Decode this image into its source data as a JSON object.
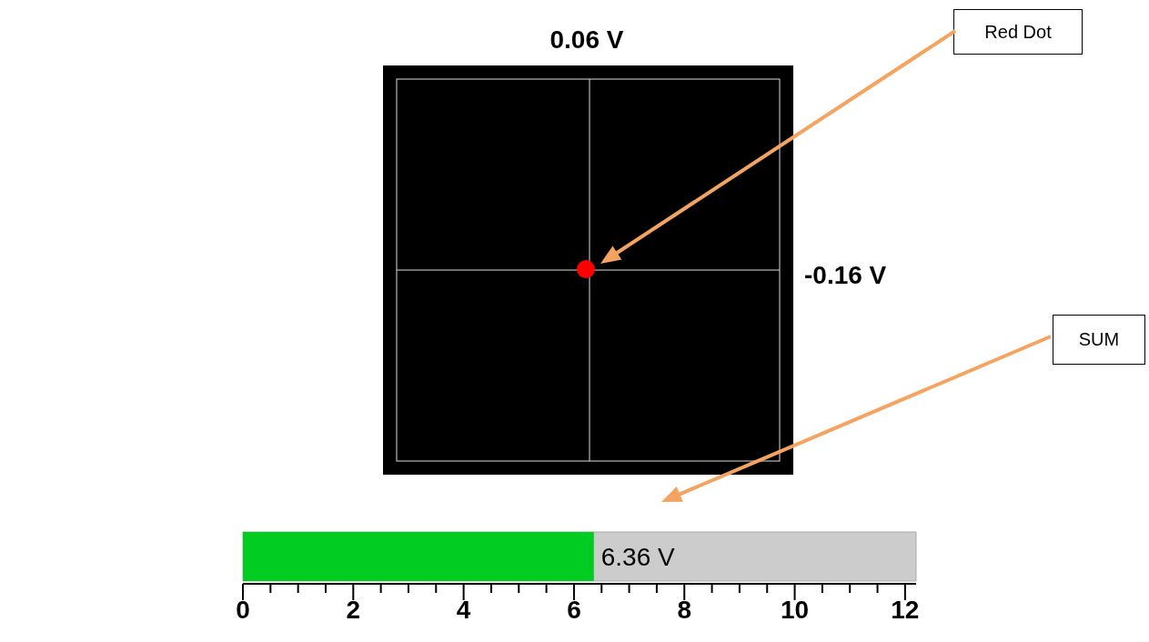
{
  "chart_data": [
    {
      "type": "other",
      "annotations": [
        "0.06 V",
        "-0.16 V",
        "Red Dot"
      ]
    },
    {
      "type": "bar",
      "orientation": "horizontal",
      "categories": [
        null
      ],
      "values": [
        6.36
      ],
      "color": "#00cc22",
      "value_labels": [
        "6.36 V"
      ],
      "xlim": [
        0,
        12.2
      ],
      "xticks": [
        0,
        {
          "value": 0.5,
          "label": null
        },
        {
          "value": 1,
          "label": null
        },
        {
          "value": 1.5,
          "label": null
        },
        2,
        {
          "value": 2.5,
          "label": null
        },
        {
          "value": 3,
          "label": null
        },
        {
          "value": 3.5,
          "label": null
        },
        4,
        {
          "value": 4.5,
          "label": null
        },
        {
          "value": 5,
          "label": null
        },
        {
          "value": 5.5,
          "label": null
        },
        6,
        {
          "value": 6.5,
          "label": null
        },
        {
          "value": 7,
          "label": null
        },
        {
          "value": 7.5,
          "label": null
        },
        8,
        {
          "value": 8.5,
          "label": null
        },
        {
          "value": 9,
          "label": null
        },
        {
          "value": 9.5,
          "label": null
        },
        10,
        {
          "value": 10.5,
          "label": null
        },
        {
          "value": 11,
          "label": null
        },
        {
          "value": 11.5,
          "label": null
        },
        12
      ],
      "annotations": [
        "SUM"
      ]
    }
  ]
}
